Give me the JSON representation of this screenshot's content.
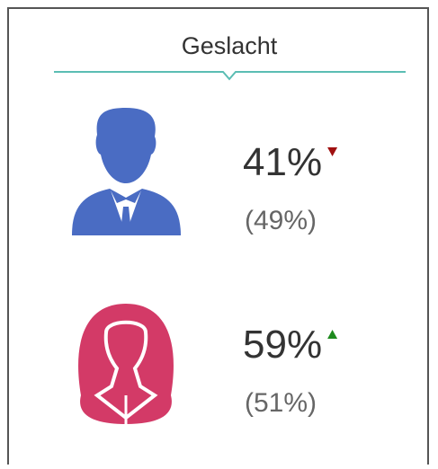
{
  "header": {
    "title": "Geslacht"
  },
  "items": [
    {
      "value": "41%",
      "compare": "(49%)",
      "trend": "down",
      "icon_color": "#4a6cc3",
      "trend_color": "#a01010"
    },
    {
      "value": "59%",
      "compare": "(51%)",
      "trend": "up",
      "icon_color": "#d33a67",
      "trend_color": "#1e8a1e"
    }
  ]
}
